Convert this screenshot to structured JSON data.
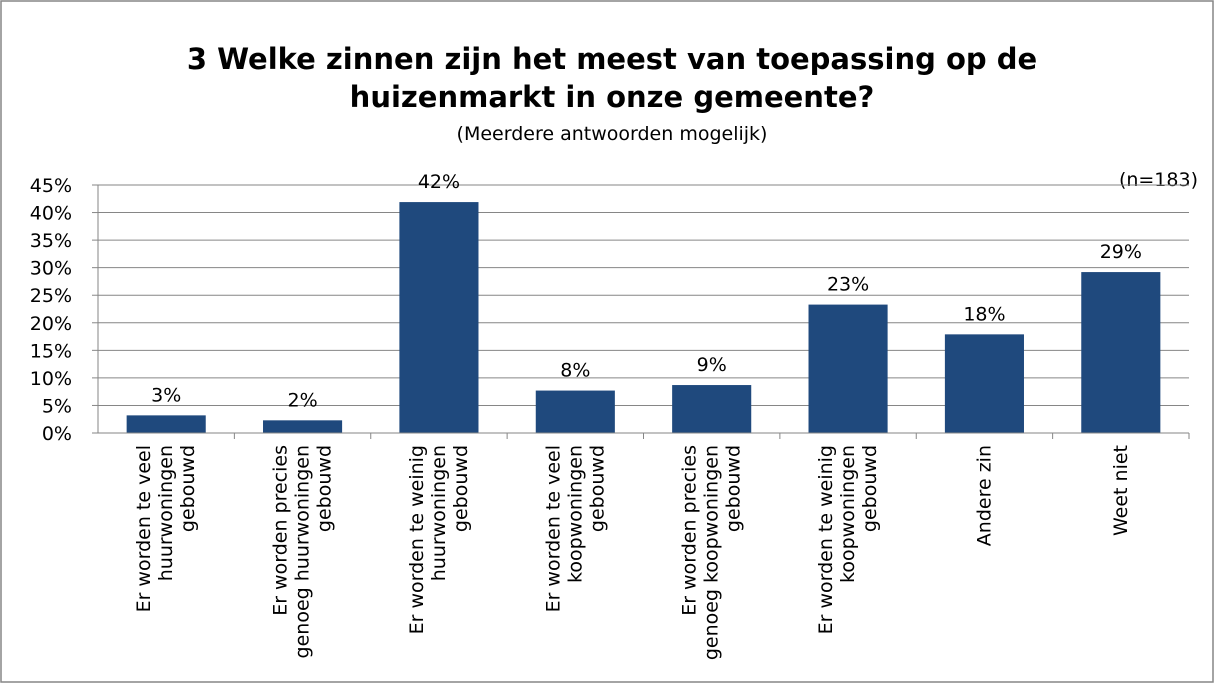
{
  "chart_data": {
    "type": "bar",
    "title": "3 Welke zinnen zijn het meest van toepassing op de\nhuizenmarkt in onze gemeente?",
    "subtitle": "(Meerdere antwoorden mogelijk)",
    "annotation": "(n=183)",
    "categories": [
      "Er worden te veel\nhuurwoningen\ngebouwd",
      "Er worden precies\ngenoeg huurwoningen\ngebouwd",
      "Er worden te weinig\nhuurwoningen\ngebouwd",
      "Er worden te veel\nkoopwoningen\ngebouwd",
      "Er worden precies\ngenoeg koopwoningen\ngebouwd",
      "Er worden te weinig\nkoopwoningen\ngebouwd",
      "Andere zin",
      "Weet niet"
    ],
    "values": [
      3.2,
      2.3,
      41.9,
      7.7,
      8.7,
      23.3,
      17.9,
      29.2
    ],
    "value_labels": [
      "3%",
      "2%",
      "42%",
      "8%",
      "9%",
      "23%",
      "18%",
      "29%"
    ],
    "color": "#1f497d",
    "ylim": [
      0,
      45
    ],
    "yticks": [
      {
        "value": 0,
        "label": "0%"
      },
      {
        "value": 5,
        "label": "5%"
      },
      {
        "value": 10,
        "label": "10%"
      },
      {
        "value": 15,
        "label": "15%"
      },
      {
        "value": 20,
        "label": "20%"
      },
      {
        "value": 25,
        "label": "25%"
      },
      {
        "value": 30,
        "label": "30%"
      },
      {
        "value": 35,
        "label": "35%"
      },
      {
        "value": 40,
        "label": "40%"
      },
      {
        "value": 45,
        "label": "45%"
      }
    ],
    "grid": true
  }
}
